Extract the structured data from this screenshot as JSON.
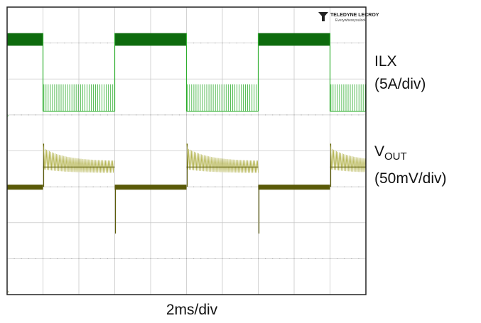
{
  "chart_data": {
    "type": "line",
    "title": "",
    "xlabel": "2ms/div",
    "logo": {
      "name": "TELEDYNE LECROY",
      "tagline": "Everywhereyoulook"
    },
    "grid": {
      "on": true,
      "x_divisions": 10,
      "y_divisions": 8
    },
    "x_axis": {
      "unit": "ms",
      "range": [
        0,
        20
      ],
      "per_division": 2
    },
    "y_axis": {
      "unit": "div",
      "range": [
        -4,
        4
      ]
    },
    "colors": {
      "ilx": "#0e6b0e",
      "ilx_low": "#2fae2f",
      "vout": "#5a5a08",
      "vout_light": "#b5b553",
      "grid": "#c8c8c8",
      "frame": "#222222"
    },
    "series": [
      {
        "name": "ILX",
        "label_name": "ILX",
        "scale": "(5A/div)",
        "baseline_div": 1.0,
        "segments": [
          {
            "x_start": 0.0,
            "x_end": 2.0,
            "state": "high",
            "level_div": 3.1,
            "ripple_div": 0.35
          },
          {
            "x_start": 2.0,
            "x_end": 6.0,
            "state": "pulsed",
            "level_div": 1.1,
            "pulse_top_div": 1.85,
            "pulse_period_ms": 0.12
          },
          {
            "x_start": 6.0,
            "x_end": 10.0,
            "state": "high",
            "level_div": 3.1,
            "ripple_div": 0.35
          },
          {
            "x_start": 10.0,
            "x_end": 14.0,
            "state": "pulsed",
            "level_div": 1.1,
            "pulse_top_div": 1.85,
            "pulse_period_ms": 0.12
          },
          {
            "x_start": 14.0,
            "x_end": 18.0,
            "state": "high",
            "level_div": 3.1,
            "ripple_div": 0.35
          },
          {
            "x_start": 18.0,
            "x_end": 20.0,
            "state": "pulsed",
            "level_div": 1.1,
            "pulse_top_div": 1.85,
            "pulse_period_ms": 0.12
          }
        ]
      },
      {
        "name": "VOUT",
        "label_main": "V",
        "label_sub": "OUT",
        "scale": "(50mV/div)",
        "baseline_div": -1.0,
        "segments": [
          {
            "x_start": 0.0,
            "x_end": 2.0,
            "state": "heavy-load",
            "level_div": -1.0,
            "ripple_div": 0.06
          },
          {
            "x_start": 2.0,
            "x_end": 6.0,
            "state": "light-load",
            "overshoot_div": 0.2,
            "level_div": -0.45,
            "ripple_div": 0.6
          },
          {
            "x_start": 6.0,
            "x_end": 10.0,
            "state": "heavy-load",
            "undershoot_div": -2.3,
            "level_div": -1.0,
            "ripple_div": 0.06
          },
          {
            "x_start": 10.0,
            "x_end": 14.0,
            "state": "light-load",
            "overshoot_div": 0.2,
            "level_div": -0.45,
            "ripple_div": 0.6
          },
          {
            "x_start": 14.0,
            "x_end": 18.0,
            "state": "heavy-load",
            "undershoot_div": -2.3,
            "level_div": -1.0,
            "ripple_div": 0.06
          },
          {
            "x_start": 18.0,
            "x_end": 20.0,
            "state": "light-load",
            "overshoot_div": 0.2,
            "level_div": -0.45,
            "ripple_div": 0.6
          }
        ]
      }
    ]
  }
}
